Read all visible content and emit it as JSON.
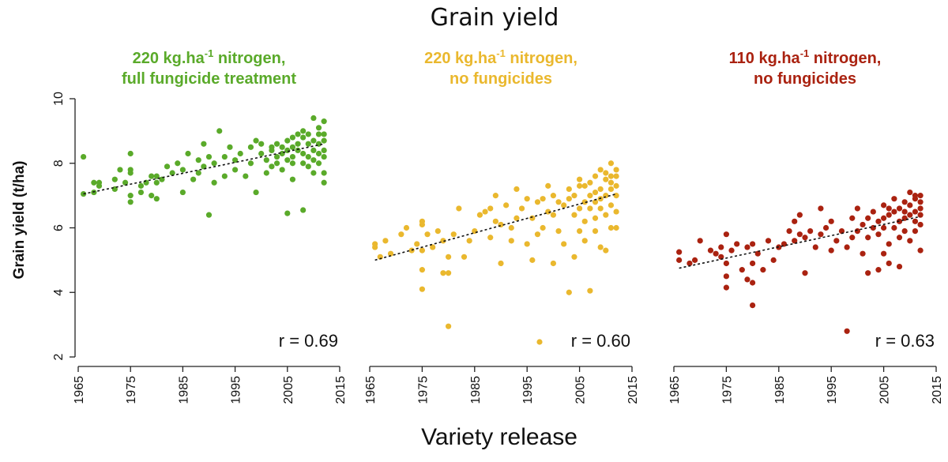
{
  "figure": {
    "suptitle": "Grain yield",
    "sup_xlabel": "Variety release"
  },
  "chart_data": [
    {
      "type": "scatter",
      "title": "220 kg.ha-1 nitrogen,",
      "title_line2": "full fungicide treatment",
      "color": "#5aaa2a",
      "ylabel": "Grain yield (t/ha)",
      "xlim": [
        1965,
        2015
      ],
      "ylim": [
        2,
        10
      ],
      "xticks": [
        "1965",
        "1975",
        "1985",
        "1995",
        "2005",
        "2015"
      ],
      "yticks": [
        "2",
        "4",
        "6",
        "8",
        "10"
      ],
      "trend": {
        "x0": 1966,
        "y0": 7.05,
        "x1": 2012,
        "y1": 8.6
      },
      "r_label": "r =  0.69",
      "points": [
        [
          1966,
          7.05
        ],
        [
          1966,
          8.2
        ],
        [
          1968,
          7.1
        ],
        [
          1968,
          7.4
        ],
        [
          1969,
          7.3
        ],
        [
          1969,
          7.4
        ],
        [
          1972,
          7.2
        ],
        [
          1972,
          7.5
        ],
        [
          1973,
          7.8
        ],
        [
          1974,
          7.4
        ],
        [
          1975,
          7.7
        ],
        [
          1975,
          8.3
        ],
        [
          1975,
          6.8
        ],
        [
          1975,
          7.0
        ],
        [
          1975,
          7.8
        ],
        [
          1977,
          7.3
        ],
        [
          1977,
          7.1
        ],
        [
          1978,
          7.4
        ],
        [
          1979,
          7.0
        ],
        [
          1979,
          7.6
        ],
        [
          1980,
          6.9
        ],
        [
          1980,
          7.6
        ],
        [
          1980,
          7.4
        ],
        [
          1981,
          7.5
        ],
        [
          1982,
          7.9
        ],
        [
          1983,
          7.7
        ],
        [
          1984,
          8.0
        ],
        [
          1985,
          7.1
        ],
        [
          1985,
          7.8
        ],
        [
          1986,
          8.3
        ],
        [
          1987,
          7.5
        ],
        [
          1988,
          7.7
        ],
        [
          1988,
          8.1
        ],
        [
          1989,
          8.6
        ],
        [
          1989,
          7.9
        ],
        [
          1990,
          6.4
        ],
        [
          1990,
          8.2
        ],
        [
          1991,
          7.4
        ],
        [
          1991,
          8.0
        ],
        [
          1992,
          9.0
        ],
        [
          1993,
          8.2
        ],
        [
          1993,
          7.6
        ],
        [
          1994,
          8.5
        ],
        [
          1995,
          7.8
        ],
        [
          1995,
          8.1
        ],
        [
          1996,
          8.3
        ],
        [
          1997,
          7.6
        ],
        [
          1998,
          8.0
        ],
        [
          1998,
          8.5
        ],
        [
          1999,
          7.1
        ],
        [
          1999,
          8.7
        ],
        [
          2000,
          8.6
        ],
        [
          2000,
          8.3
        ],
        [
          2001,
          7.7
        ],
        [
          2001,
          8.1
        ],
        [
          2002,
          8.4
        ],
        [
          2002,
          8.5
        ],
        [
          2002,
          7.9
        ],
        [
          2003,
          8.2
        ],
        [
          2003,
          8.0
        ],
        [
          2003,
          8.6
        ],
        [
          2004,
          8.3
        ],
        [
          2004,
          7.8
        ],
        [
          2004,
          8.5
        ],
        [
          2005,
          6.45
        ],
        [
          2005,
          8.1
        ],
        [
          2005,
          8.7
        ],
        [
          2005,
          8.4
        ],
        [
          2006,
          8.2
        ],
        [
          2006,
          8.8
        ],
        [
          2006,
          7.5
        ],
        [
          2006,
          8.5
        ],
        [
          2006,
          8.0
        ],
        [
          2007,
          8.4
        ],
        [
          2007,
          8.9
        ],
        [
          2007,
          8.6
        ],
        [
          2008,
          6.55
        ],
        [
          2008,
          8.0
        ],
        [
          2008,
          8.8
        ],
        [
          2008,
          8.3
        ],
        [
          2008,
          9.0
        ],
        [
          2009,
          8.2
        ],
        [
          2009,
          8.6
        ],
        [
          2009,
          8.9
        ],
        [
          2009,
          7.9
        ],
        [
          2010,
          8.4
        ],
        [
          2010,
          9.4
        ],
        [
          2010,
          8.7
        ],
        [
          2010,
          8.1
        ],
        [
          2010,
          7.7
        ],
        [
          2011,
          8.3
        ],
        [
          2011,
          8.9
        ],
        [
          2011,
          8.6
        ],
        [
          2011,
          8.0
        ],
        [
          2011,
          9.1
        ],
        [
          2012,
          7.4
        ],
        [
          2012,
          8.4
        ],
        [
          2012,
          8.7
        ],
        [
          2012,
          9.3
        ],
        [
          2012,
          8.2
        ],
        [
          2012,
          7.7
        ],
        [
          2012,
          8.9
        ]
      ]
    },
    {
      "type": "scatter",
      "title": "220 kg.ha-1 nitrogen,",
      "title_line2": "no fungicides",
      "color": "#eab82e",
      "ylabel": "",
      "xlim": [
        1965,
        2015
      ],
      "ylim": [
        2,
        10
      ],
      "xticks": [
        "1965",
        "1975",
        "1985",
        "1995",
        "2005",
        "2015"
      ],
      "yticks": [],
      "trend": {
        "x0": 1966,
        "y0": 5.0,
        "x1": 2012,
        "y1": 7.05
      },
      "r_label": "r = 0.60",
      "points": [
        [
          1966,
          5.4
        ],
        [
          1966,
          5.5
        ],
        [
          1967,
          5.1
        ],
        [
          1968,
          5.6
        ],
        [
          1969,
          5.2
        ],
        [
          1971,
          5.8
        ],
        [
          1972,
          6.0
        ],
        [
          1973,
          5.3
        ],
        [
          1974,
          5.5
        ],
        [
          1975,
          5.3
        ],
        [
          1975,
          6.2
        ],
        [
          1975,
          4.7
        ],
        [
          1975,
          4.1
        ],
        [
          1975,
          6.1
        ],
        [
          1976,
          5.8
        ],
        [
          1977,
          5.4
        ],
        [
          1978,
          5.9
        ],
        [
          1979,
          5.6
        ],
        [
          1979,
          4.6
        ],
        [
          1980,
          2.95
        ],
        [
          1980,
          5.1
        ],
        [
          1980,
          4.6
        ],
        [
          1981,
          5.8
        ],
        [
          1982,
          6.6
        ],
        [
          1983,
          5.1
        ],
        [
          1984,
          5.6
        ],
        [
          1985,
          5.9
        ],
        [
          1986,
          6.4
        ],
        [
          1987,
          6.5
        ],
        [
          1988,
          5.7
        ],
        [
          1988,
          6.6
        ],
        [
          1989,
          7.0
        ],
        [
          1989,
          6.2
        ],
        [
          1990,
          6.1
        ],
        [
          1990,
          4.9
        ],
        [
          1991,
          6.7
        ],
        [
          1992,
          6.0
        ],
        [
          1992,
          5.6
        ],
        [
          1993,
          7.2
        ],
        [
          1993,
          6.3
        ],
        [
          1994,
          6.6
        ],
        [
          1995,
          5.5
        ],
        [
          1995,
          6.9
        ],
        [
          1996,
          5.0
        ],
        [
          1996,
          6.3
        ],
        [
          1997,
          6.8
        ],
        [
          1997,
          5.8
        ],
        [
          1998,
          6.0
        ],
        [
          1998,
          6.9
        ],
        [
          1999,
          6.5
        ],
        [
          1999,
          7.3
        ],
        [
          2000,
          4.9
        ],
        [
          2000,
          6.4
        ],
        [
          2000,
          7.0
        ],
        [
          2001,
          5.9
        ],
        [
          2001,
          6.8
        ],
        [
          2002,
          6.7
        ],
        [
          2002,
          5.5
        ],
        [
          2003,
          7.2
        ],
        [
          2003,
          4.0
        ],
        [
          2003,
          6.9
        ],
        [
          2004,
          5.1
        ],
        [
          2004,
          7.0
        ],
        [
          2004,
          6.4
        ],
        [
          2005,
          6.6
        ],
        [
          2005,
          7.3
        ],
        [
          2005,
          7.5
        ],
        [
          2005,
          5.9
        ],
        [
          2006,
          6.2
        ],
        [
          2006,
          6.8
        ],
        [
          2006,
          7.3
        ],
        [
          2006,
          5.6
        ],
        [
          2007,
          4.05
        ],
        [
          2007,
          6.6
        ],
        [
          2007,
          7.0
        ],
        [
          2007,
          7.4
        ],
        [
          2008,
          5.9
        ],
        [
          2008,
          7.6
        ],
        [
          2008,
          6.3
        ],
        [
          2008,
          7.1
        ],
        [
          2008,
          6.8
        ],
        [
          2009,
          6.6
        ],
        [
          2009,
          7.2
        ],
        [
          2009,
          7.8
        ],
        [
          2009,
          5.4
        ],
        [
          2009,
          6.9
        ],
        [
          2010,
          7.0
        ],
        [
          2010,
          7.5
        ],
        [
          2010,
          6.4
        ],
        [
          2010,
          5.3
        ],
        [
          2010,
          7.7
        ],
        [
          2011,
          7.4
        ],
        [
          2011,
          8.0
        ],
        [
          2011,
          6.7
        ],
        [
          2011,
          6.0
        ],
        [
          2011,
          7.2
        ],
        [
          2011,
          7.6
        ],
        [
          2012,
          7.0
        ],
        [
          2012,
          7.8
        ],
        [
          2012,
          6.5
        ],
        [
          2012,
          7.3
        ],
        [
          2012,
          6.0
        ],
        [
          2012,
          7.6
        ]
      ]
    },
    {
      "type": "scatter",
      "title": "110 kg.ha-1 nitrogen,",
      "title_line2": "no fungicides",
      "color": "#aa2210",
      "ylabel": "",
      "xlim": [
        1965,
        2015
      ],
      "ylim": [
        2,
        10
      ],
      "xticks": [
        "1965",
        "1975",
        "1985",
        "1995",
        "2005",
        "2015"
      ],
      "yticks": [],
      "trend": {
        "x0": 1966,
        "y0": 4.75,
        "x1": 2012,
        "y1": 6.35
      },
      "r_label": "r = 0.63",
      "points": [
        [
          1966,
          5.0
        ],
        [
          1966,
          5.25
        ],
        [
          1968,
          4.9
        ],
        [
          1969,
          5.0
        ],
        [
          1970,
          5.6
        ],
        [
          1972,
          5.3
        ],
        [
          1973,
          5.2
        ],
        [
          1974,
          5.4
        ],
        [
          1974,
          5.1
        ],
        [
          1975,
          4.9
        ],
        [
          1975,
          5.8
        ],
        [
          1975,
          4.5
        ],
        [
          1975,
          4.15
        ],
        [
          1976,
          5.3
        ],
        [
          1977,
          5.5
        ],
        [
          1978,
          4.7
        ],
        [
          1979,
          5.4
        ],
        [
          1979,
          4.4
        ],
        [
          1980,
          3.6
        ],
        [
          1980,
          4.9
        ],
        [
          1980,
          4.3
        ],
        [
          1980,
          5.5
        ],
        [
          1981,
          5.2
        ],
        [
          1982,
          4.7
        ],
        [
          1983,
          5.6
        ],
        [
          1984,
          5.0
        ],
        [
          1985,
          5.4
        ],
        [
          1986,
          5.5
        ],
        [
          1987,
          5.9
        ],
        [
          1988,
          5.6
        ],
        [
          1988,
          6.2
        ],
        [
          1989,
          6.4
        ],
        [
          1989,
          5.8
        ],
        [
          1990,
          4.6
        ],
        [
          1990,
          5.7
        ],
        [
          1991,
          5.9
        ],
        [
          1992,
          5.4
        ],
        [
          1993,
          6.6
        ],
        [
          1993,
          5.8
        ],
        [
          1994,
          6.0
        ],
        [
          1995,
          5.3
        ],
        [
          1995,
          6.2
        ],
        [
          1996,
          5.6
        ],
        [
          1997,
          5.9
        ],
        [
          1998,
          2.8
        ],
        [
          1998,
          5.4
        ],
        [
          1999,
          6.3
        ],
        [
          1999,
          5.7
        ],
        [
          2000,
          6.6
        ],
        [
          2000,
          5.9
        ],
        [
          2001,
          5.2
        ],
        [
          2001,
          6.1
        ],
        [
          2002,
          5.7
        ],
        [
          2002,
          6.3
        ],
        [
          2002,
          4.6
        ],
        [
          2003,
          6.0
        ],
        [
          2003,
          6.5
        ],
        [
          2004,
          4.7
        ],
        [
          2004,
          6.2
        ],
        [
          2004,
          5.8
        ],
        [
          2005,
          6.3
        ],
        [
          2005,
          6.7
        ],
        [
          2005,
          5.2
        ],
        [
          2005,
          6.0
        ],
        [
          2006,
          6.4
        ],
        [
          2006,
          6.6
        ],
        [
          2006,
          5.5
        ],
        [
          2006,
          4.9
        ],
        [
          2007,
          6.0
        ],
        [
          2007,
          6.5
        ],
        [
          2007,
          6.9
        ],
        [
          2008,
          4.8
        ],
        [
          2008,
          6.2
        ],
        [
          2008,
          6.6
        ],
        [
          2008,
          5.7
        ],
        [
          2009,
          6.3
        ],
        [
          2009,
          6.8
        ],
        [
          2009,
          5.9
        ],
        [
          2009,
          6.5
        ],
        [
          2010,
          7.1
        ],
        [
          2010,
          6.4
        ],
        [
          2010,
          5.6
        ],
        [
          2010,
          6.7
        ],
        [
          2011,
          6.2
        ],
        [
          2011,
          6.9
        ],
        [
          2011,
          6.5
        ],
        [
          2011,
          5.9
        ],
        [
          2011,
          7.0
        ],
        [
          2012,
          5.3
        ],
        [
          2012,
          6.4
        ],
        [
          2012,
          6.8
        ],
        [
          2012,
          6.1
        ],
        [
          2012,
          6.6
        ],
        [
          2012,
          7.0
        ]
      ]
    }
  ]
}
